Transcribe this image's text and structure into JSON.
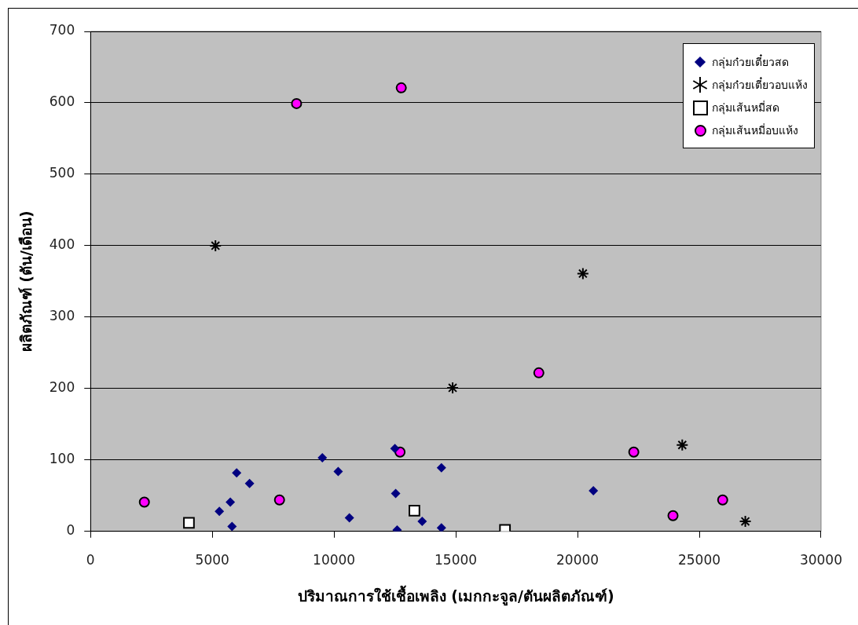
{
  "chart_data": {
    "type": "scatter",
    "xlabel": "ปริมาณการใช้เชื้อเพลิง (เมกกะจูล/ตันผลิตภัณฑ์)",
    "ylabel": "ผลิตภัณฑ์ (ตัน/เดือน)",
    "xlim": [
      0,
      30000
    ],
    "xticks": [
      0,
      5000,
      10000,
      15000,
      20000,
      25000,
      30000
    ],
    "ylim": [
      0,
      700
    ],
    "yticks": [
      0,
      100,
      200,
      300,
      400,
      500,
      600,
      700
    ],
    "grid": "y",
    "legend": "top right",
    "series": [
      {
        "name": "กลุ่มก๋วยเตี๋ยวสด",
        "color": "#000080",
        "marker": "diamond",
        "x": [
          6000,
          6530,
          5740,
          5290,
          5810,
          9520,
          10170,
          10630,
          12500,
          12530,
          12590,
          13620,
          14410,
          14410,
          20650
        ],
        "values": [
          82,
          67,
          41,
          28,
          7,
          103,
          84,
          19,
          116,
          53,
          2,
          14,
          89,
          5,
          57
        ]
      },
      {
        "name": "กลุ่มก๋วยเตี๋ยวอบแห้ง",
        "color": "#000000",
        "marker": "cross",
        "x": [
          5130,
          14870,
          20220,
          24300,
          26890
        ],
        "values": [
          400,
          201,
          361,
          121,
          14
        ]
      },
      {
        "name": "กลุ่มเส้นหมี่สด",
        "color": "#ffffff",
        "marker": "square",
        "x": [
          4040,
          13300,
          17020
        ],
        "values": [
          12,
          29,
          2
        ]
      },
      {
        "name": "กลุ่มเส้นหมี่อบแห้ง",
        "color": "#ff00ff",
        "marker": "circle",
        "x": [
          2210,
          7760,
          8460,
          12760,
          12710,
          18410,
          22310,
          23920,
          25960
        ],
        "values": [
          41,
          44,
          599,
          621,
          111,
          222,
          111,
          22,
          44
        ]
      }
    ]
  }
}
